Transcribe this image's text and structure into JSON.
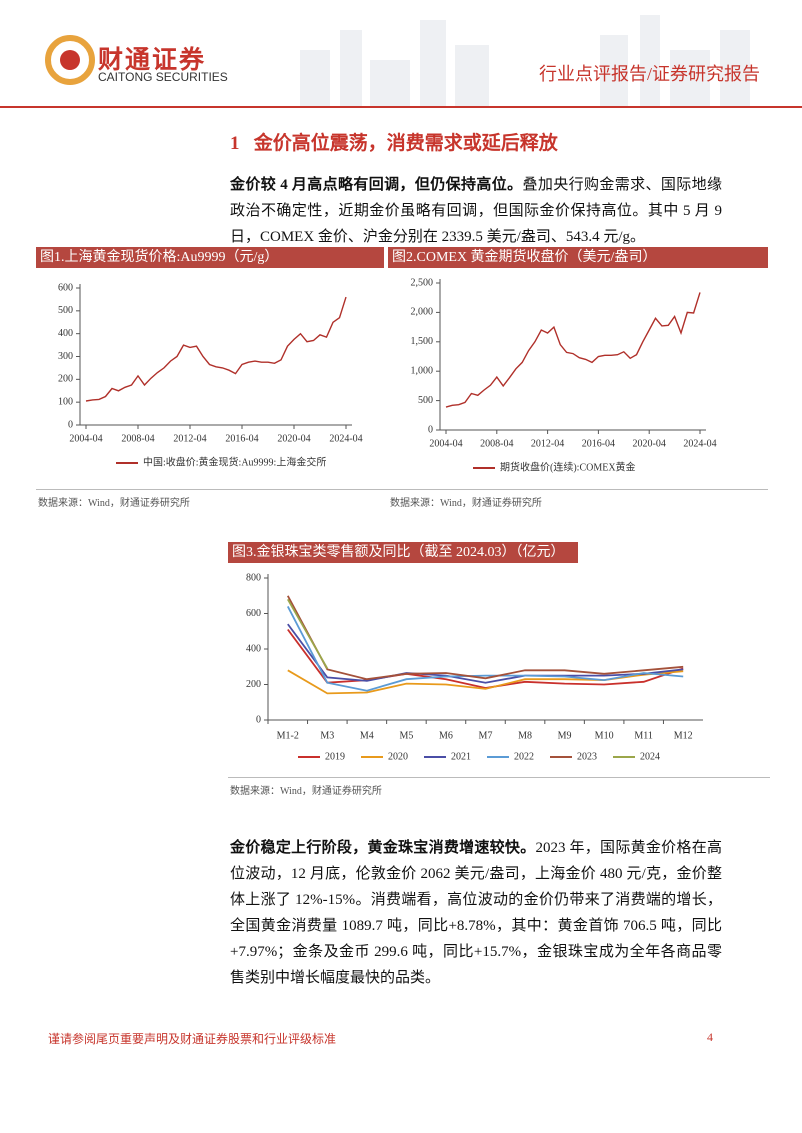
{
  "header": {
    "company": "财通证券",
    "company_en": "CAITONG SECURITIES",
    "report_type": "行业点评报告/证券研究报告"
  },
  "section_title": "1   金价高位震荡，消费需求或延后释放",
  "paragraphs": [
    {
      "lead": "金价较 4 月高点略有回调，但仍保持高位。",
      "body": "叠加央行购金需求、国际地缘政治不确定性，近期金价虽略有回调，但国际金价保持高位。其中 5 月 9 日，COMEX 金价、沪金分别在 2339.5 美元/盎司、543.4 元/g。"
    },
    {
      "lead": "金价稳定上行阶段，黄金珠宝消费增速较快。",
      "body": "2023 年，国际黄金价格在高位波动，12 月底，伦敦金价 2062 美元/盎司，上海金价 480 元/克，金价整体上涨了 12%-15%。消费端看，高位波动的金价仍带来了消费端的增长，全国黄金消费量 1089.7 吨，同比+8.78%，其中：黄金首饰 706.5 吨，同比+7.97%；金条及金币 299.6 吨，同比+15.7%，金银珠宝成为全年各商品零售类别中增长幅度最快的品类。"
    }
  ],
  "chart_data": [
    {
      "type": "line",
      "title": "图1.上海黄金现货价格:Au9999（元/g）",
      "source": "数据来源：Wind，财通证券研究所",
      "x": [
        "2004-04",
        "2004-10",
        "2005-04",
        "2005-10",
        "2006-04",
        "2006-10",
        "2007-04",
        "2007-10",
        "2008-04",
        "2008-10",
        "2009-04",
        "2009-10",
        "2010-04",
        "2010-10",
        "2011-04",
        "2011-10",
        "2012-04",
        "2012-10",
        "2013-04",
        "2013-10",
        "2014-04",
        "2014-10",
        "2015-04",
        "2015-10",
        "2016-04",
        "2016-10",
        "2017-04",
        "2017-10",
        "2018-04",
        "2018-10",
        "2019-04",
        "2019-10",
        "2020-04",
        "2020-10",
        "2021-04",
        "2021-10",
        "2022-04",
        "2022-10",
        "2023-04",
        "2023-10",
        "2024-04"
      ],
      "series": [
        {
          "name": "中国:收盘价:黄金现货:Au9999:上海金交所",
          "color": "#b0302a",
          "values": [
            105,
            110,
            112,
            125,
            160,
            150,
            165,
            175,
            215,
            175,
            205,
            230,
            250,
            280,
            300,
            350,
            340,
            345,
            300,
            265,
            255,
            250,
            240,
            225,
            265,
            275,
            280,
            275,
            275,
            270,
            285,
            345,
            375,
            400,
            365,
            370,
            395,
            385,
            450,
            470,
            560
          ]
        }
      ],
      "xlim": [
        "2004-04",
        "2024-04"
      ],
      "xticks": [
        "2004-04",
        "2008-04",
        "2012-04",
        "2016-04",
        "2020-04",
        "2024-04"
      ],
      "ylim": [
        0,
        600
      ],
      "yticks": [
        0,
        100,
        200,
        300,
        400,
        500,
        600
      ],
      "grid": false
    },
    {
      "type": "line",
      "title": "图2.COMEX 黄金期货收盘价（美元/盎司）",
      "source": "数据来源：Wind，财通证券研究所",
      "x": [
        "2004-04",
        "2004-10",
        "2005-04",
        "2005-10",
        "2006-04",
        "2006-10",
        "2007-04",
        "2007-10",
        "2008-04",
        "2008-10",
        "2009-04",
        "2009-10",
        "2010-04",
        "2010-10",
        "2011-04",
        "2011-10",
        "2012-04",
        "2012-10",
        "2013-04",
        "2013-10",
        "2014-04",
        "2014-10",
        "2015-04",
        "2015-10",
        "2016-04",
        "2016-10",
        "2017-04",
        "2017-10",
        "2018-04",
        "2018-10",
        "2019-04",
        "2019-10",
        "2020-04",
        "2020-10",
        "2021-04",
        "2021-10",
        "2022-04",
        "2022-10",
        "2023-04",
        "2023-10",
        "2024-04"
      ],
      "series": [
        {
          "name": "期货收盘价(连续):COMEX黄金",
          "color": "#b0302a",
          "values": [
            390,
            420,
            430,
            470,
            620,
            590,
            680,
            760,
            900,
            750,
            890,
            1040,
            1150,
            1350,
            1500,
            1700,
            1650,
            1750,
            1450,
            1320,
            1300,
            1230,
            1200,
            1150,
            1250,
            1270,
            1270,
            1280,
            1330,
            1220,
            1280,
            1500,
            1700,
            1900,
            1770,
            1780,
            1930,
            1650,
            2000,
            1990,
            2340
          ]
        }
      ],
      "xlim": [
        "2004-04",
        "2024-04"
      ],
      "xticks": [
        "2004-04",
        "2008-04",
        "2012-04",
        "2016-04",
        "2020-04",
        "2024-04"
      ],
      "ylim": [
        0,
        2500
      ],
      "yticks": [
        0,
        500,
        {
          "value": 1000,
          "label": "1,000"
        },
        {
          "value": 1500,
          "label": "1,500"
        },
        {
          "value": 2000,
          "label": "2,000"
        },
        {
          "value": 2500,
          "label": "2,500"
        }
      ],
      "grid": false
    },
    {
      "type": "line",
      "title": "图3.金银珠宝类零售额及同比（截至 2024.03）（亿元）",
      "source": "数据来源：Wind，财通证券研究所",
      "categories": [
        "M1-2",
        "M3",
        "M4",
        "M5",
        "M6",
        "M7",
        "M8",
        "M9",
        "M10",
        "M11",
        "M12"
      ],
      "series": [
        {
          "name": "2019",
          "color": "#c9302c",
          "values": [
            510,
            210,
            225,
            260,
            230,
            180,
            215,
            205,
            200,
            215,
            290
          ]
        },
        {
          "name": "2020",
          "color": "#e89a1c",
          "values": [
            280,
            150,
            155,
            205,
            200,
            175,
            230,
            230,
            225,
            255,
            275
          ]
        },
        {
          "name": "2021",
          "color": "#4a4ea6",
          "values": [
            540,
            240,
            220,
            265,
            250,
            210,
            250,
            250,
            250,
            260,
            285
          ]
        },
        {
          "name": "2022",
          "color": "#5b9bd5",
          "values": [
            640,
            210,
            165,
            230,
            245,
            250,
            250,
            245,
            225,
            265,
            245
          ]
        },
        {
          "name": "2023",
          "color": "#a4513a",
          "values": [
            700,
            285,
            230,
            260,
            265,
            235,
            280,
            280,
            260,
            280,
            300
          ]
        },
        {
          "name": "2024",
          "color": "#9ba64a",
          "values": [
            680,
            290,
            null,
            null,
            null,
            null,
            null,
            null,
            null,
            null,
            null
          ]
        }
      ],
      "ylim": [
        0,
        800
      ],
      "yticks": [
        0,
        200,
        400,
        600,
        800
      ],
      "grid": false
    }
  ],
  "footer": {
    "disclaimer": "谨请参阅尾页重要声明及财通证券股票和行业评级标准",
    "page": 4
  }
}
